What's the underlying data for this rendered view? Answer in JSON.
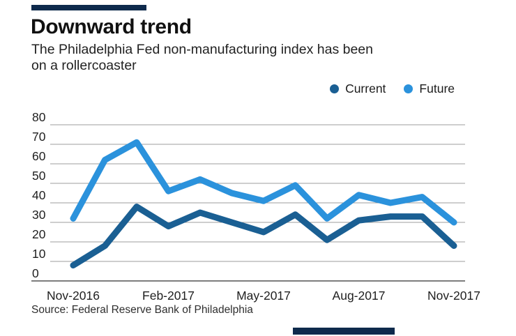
{
  "header": {
    "title": "Downward trend",
    "subtitle_line1": "The Philadelphia Fed non-manufacturing index has been",
    "subtitle_line2": "on a rollercoaster"
  },
  "legend": {
    "items": [
      {
        "label": "Current",
        "color": "#1a5f93"
      },
      {
        "label": "Future",
        "color": "#2b92dc"
      }
    ]
  },
  "chart_data": {
    "type": "line",
    "title": "Downward trend",
    "subtitle": "The Philadelphia Fed non-manufacturing index has been on a rollercoaster",
    "x": [
      "Nov-2016",
      "Dec-2016",
      "Jan-2017",
      "Feb-2017",
      "Mar-2017",
      "Apr-2017",
      "May-2017",
      "Jun-2017",
      "Jul-2017",
      "Aug-2017",
      "Sep-2017",
      "Oct-2017",
      "Nov-2017"
    ],
    "x_tick_labels": [
      "Nov-2016",
      "Feb-2017",
      "May-2017",
      "Aug-2017",
      "Nov-2017"
    ],
    "series": [
      {
        "name": "Future",
        "color": "#2b92dc",
        "values": [
          32,
          62,
          71,
          46,
          52,
          45,
          41,
          49,
          32,
          44,
          40,
          43,
          30
        ]
      },
      {
        "name": "Current",
        "color": "#1a5f93",
        "values": [
          8,
          18,
          38,
          28,
          35,
          30,
          25,
          34,
          21,
          31,
          33,
          33,
          18
        ]
      }
    ],
    "ylim": [
      0,
      80
    ],
    "y_ticks": [
      0,
      10,
      20,
      30,
      40,
      50,
      60,
      70,
      80
    ],
    "grid": true,
    "gridline_color": "#9c9c9c",
    "axis_line_color": "#7d7d7d",
    "tick_label_color": "#1f1f1f",
    "legend_position": "top-right"
  },
  "source": {
    "text": "Source: Federal Reserve Bank of Philadelphia"
  },
  "branding": {
    "bar_color": "#0e2a4c"
  }
}
